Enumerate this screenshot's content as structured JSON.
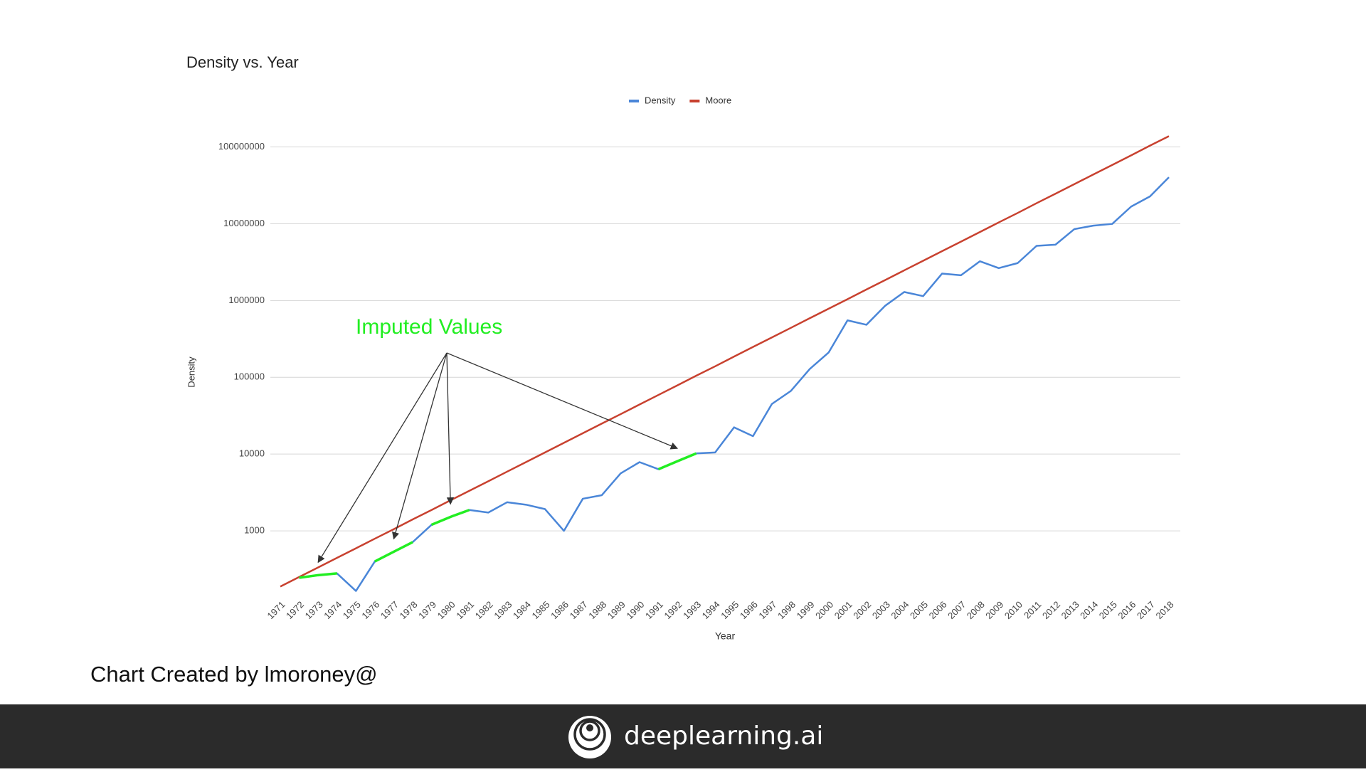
{
  "chart_data": {
    "type": "line",
    "title": "Density vs. Year",
    "x_label": "Year",
    "y_label": "Density",
    "yscale": "log",
    "grid": true,
    "legend": "top",
    "categories": [
      "1971",
      "1972",
      "1973",
      "1974",
      "1975",
      "1976",
      "1977",
      "1978",
      "1979",
      "1980",
      "1981",
      "1982",
      "1983",
      "1984",
      "1985",
      "1986",
      "1987",
      "1988",
      "1989",
      "1990",
      "1991",
      "1992",
      "1993",
      "1994",
      "1995",
      "1996",
      "1997",
      "1998",
      "1999",
      "2000",
      "2001",
      "2002",
      "2003",
      "2004",
      "2005",
      "2006",
      "2007",
      "2008",
      "2009",
      "2010",
      "2011",
      "2012",
      "2013",
      "2014",
      "2015",
      "2016",
      "2017",
      "2018"
    ],
    "series": [
      {
        "name": "Density",
        "color": "#4a86d8",
        "values": [
          null,
          245,
          265,
          279,
          165,
          400,
          535,
          713,
          1200,
          1520,
          1870,
          1730,
          2360,
          2190,
          1920,
          1000,
          2620,
          2910,
          5600,
          7850,
          6350,
          8060,
          10200,
          10500,
          22300,
          17100,
          44900,
          66300,
          128000,
          210000,
          551000,
          483000,
          857000,
          1290000,
          1140000,
          2240000,
          2130000,
          3240000,
          2640000,
          3070000,
          5150000,
          5330000,
          8510000,
          9440000,
          9940000,
          16700000,
          22700000,
          40300000
        ]
      },
      {
        "name": "Moore",
        "color": "#c8412f",
        "values": [
          188,
          251,
          334,
          445,
          593,
          791,
          1050,
          1410,
          1870,
          2500,
          3330,
          4430,
          5910,
          7870,
          10500,
          14000,
          18700,
          24900,
          33100,
          44200,
          58900,
          78500,
          105000,
          139000,
          186000,
          248000,
          330000,
          440000,
          587000,
          782000,
          1040000,
          1390000,
          1850000,
          2470000,
          3290000,
          4390000,
          5840000,
          7790000,
          10400000,
          13800000,
          18500000,
          24600000,
          32800000,
          43700000,
          58200000,
          77600000,
          104000000,
          138000000
        ]
      }
    ],
    "ylim": [
      150,
      200000000
    ],
    "yticks": [
      1000,
      10000,
      100000,
      1000000,
      10000000,
      100000000
    ],
    "annotation": {
      "text": "Imputed Values",
      "color": "#22ee22",
      "imputed_years": [
        1973,
        1977,
        1980,
        1992
      ]
    }
  },
  "caption": "Chart Created by lmoroney@",
  "footer": {
    "brand": "deeplearning.ai"
  }
}
